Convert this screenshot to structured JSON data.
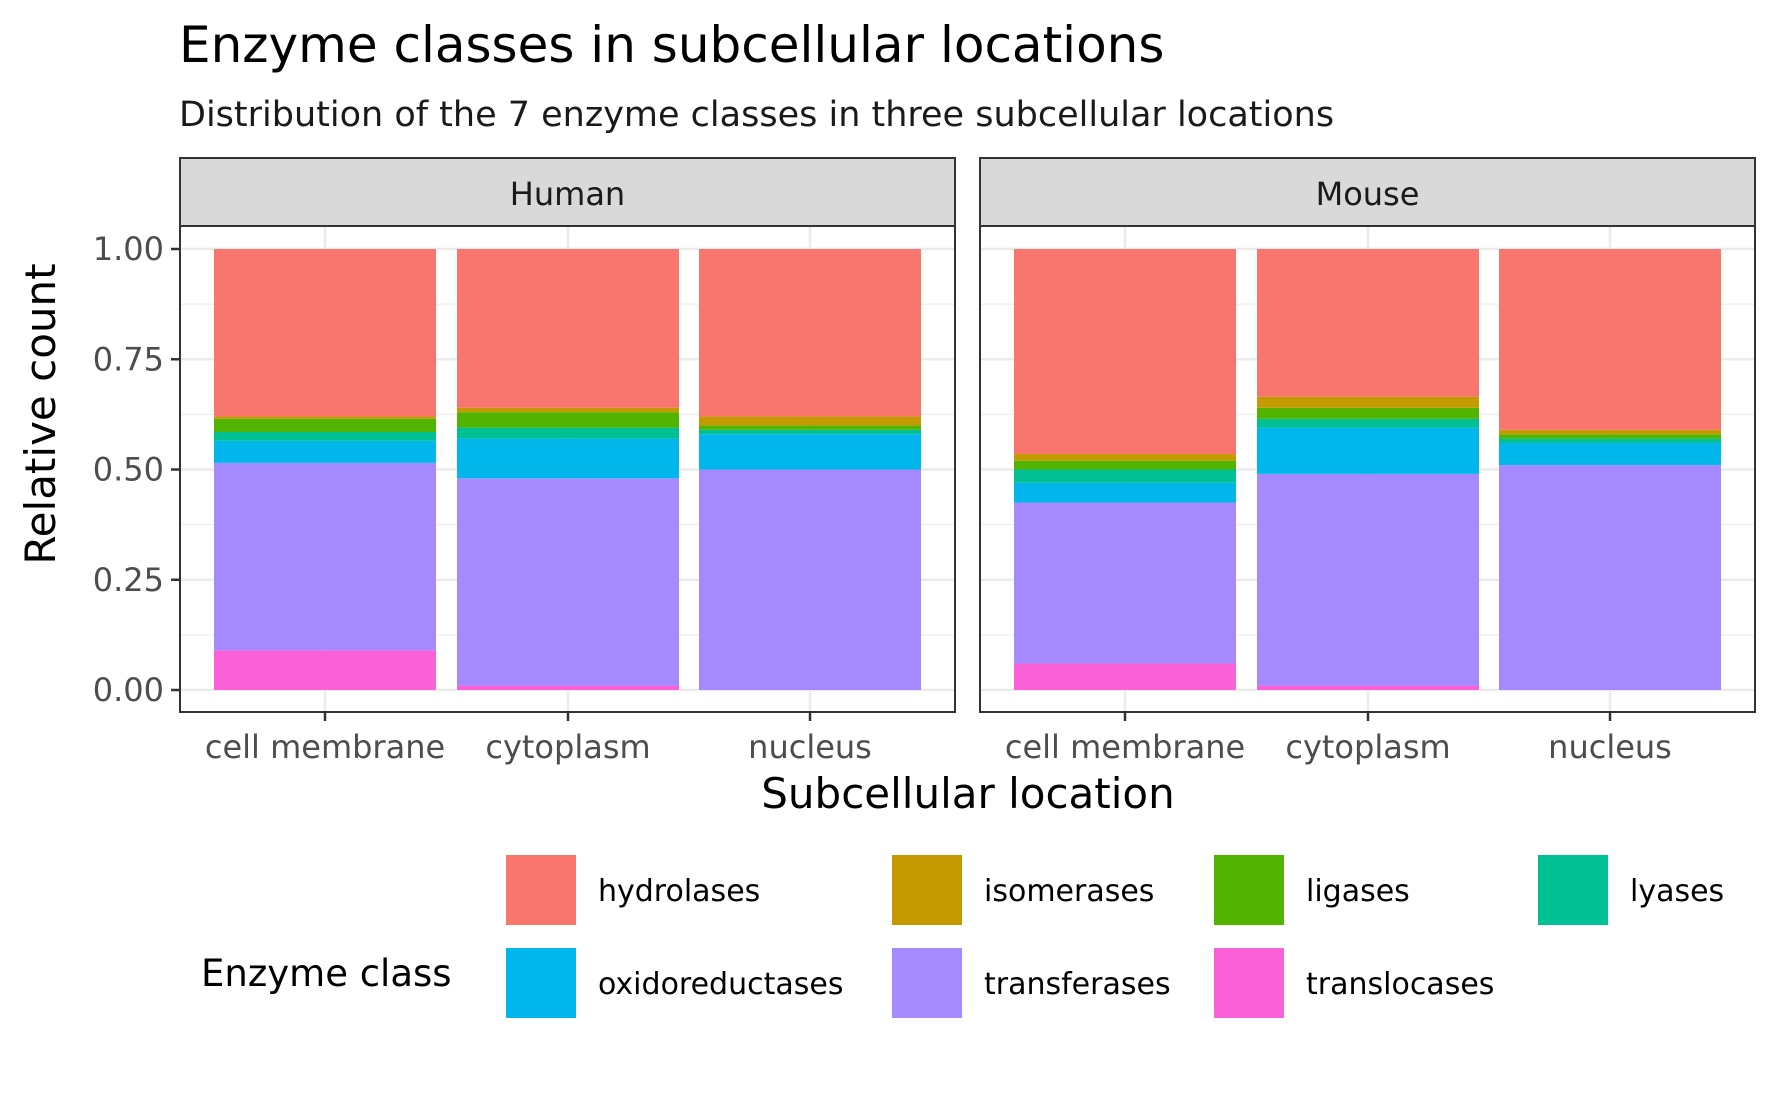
{
  "chart_data": {
    "type": "bar",
    "stacked": true,
    "title": "Enzyme classes in subcellular locations",
    "subtitle": "Distribution of the 7 enzyme classes in three subcellular locations",
    "xlabel": "Subcellular location",
    "ylabel": "Relative count",
    "ylim": [
      0,
      1
    ],
    "yticks": [
      "0.00",
      "0.25",
      "0.50",
      "0.75",
      "1.00"
    ],
    "ytick_values": [
      0,
      0.25,
      0.5,
      0.75,
      1
    ],
    "grid": true,
    "legend_position": "bottom",
    "legend_title": "Enzyme class",
    "categories": [
      "cell membrane",
      "cytoplasm",
      "nucleus"
    ],
    "stack_order": [
      "translocases",
      "transferases",
      "oxidoreductases",
      "lyases",
      "ligases",
      "isomerases",
      "hydrolases"
    ],
    "legend_order": [
      "hydrolases",
      "isomerases",
      "ligases",
      "lyases",
      "oxidoreductases",
      "transferases",
      "translocases"
    ],
    "colors": {
      "hydrolases": "#F8766D",
      "isomerases": "#C49A00",
      "ligases": "#53B400",
      "lyases": "#00C094",
      "oxidoreductases": "#00B6EB",
      "transferases": "#A58AFF",
      "translocases": "#FB61D7"
    },
    "panels": [
      {
        "name": "Human",
        "series": [
          {
            "name": "translocases",
            "values": [
              0.09,
              0.01,
              0.0
            ]
          },
          {
            "name": "transferases",
            "values": [
              0.425,
              0.47,
              0.5
            ]
          },
          {
            "name": "oxidoreductases",
            "values": [
              0.05,
              0.09,
              0.08
            ]
          },
          {
            "name": "lyases",
            "values": [
              0.02,
              0.025,
              0.01
            ]
          },
          {
            "name": "ligases",
            "values": [
              0.03,
              0.035,
              0.01
            ]
          },
          {
            "name": "isomerases",
            "values": [
              0.005,
              0.01,
              0.02
            ]
          },
          {
            "name": "hydrolases",
            "values": [
              0.38,
              0.36,
              0.38
            ]
          }
        ]
      },
      {
        "name": "Mouse",
        "series": [
          {
            "name": "translocases",
            "values": [
              0.06,
              0.01,
              0.0
            ]
          },
          {
            "name": "transferases",
            "values": [
              0.365,
              0.48,
              0.51
            ]
          },
          {
            "name": "oxidoreductases",
            "values": [
              0.045,
              0.105,
              0.05
            ]
          },
          {
            "name": "lyases",
            "values": [
              0.03,
              0.02,
              0.01
            ]
          },
          {
            "name": "ligases",
            "values": [
              0.02,
              0.025,
              0.01
            ]
          },
          {
            "name": "isomerases",
            "values": [
              0.015,
              0.025,
              0.01
            ]
          },
          {
            "name": "hydrolases",
            "values": [
              0.465,
              0.335,
              0.41
            ]
          }
        ]
      }
    ]
  }
}
